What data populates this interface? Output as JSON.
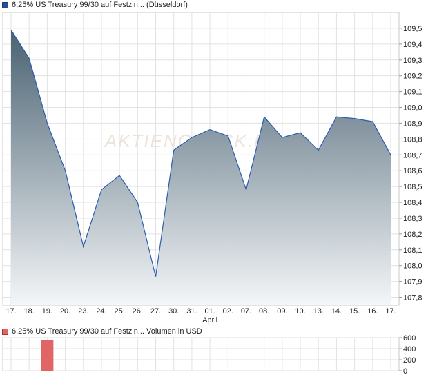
{
  "legend_main": {
    "label": "6,25% US Treasury 99/30 auf Festzin... (Düsseldorf)",
    "color": "#1f4e9a"
  },
  "legend_volume": {
    "label": "6,25% US Treasury 99/30 auf Festzin... Volumen in USD",
    "color": "#e06666"
  },
  "watermark": "AKTIENCHECK.DE",
  "chart_data": [
    {
      "type": "area",
      "x": [
        "17.",
        "18.",
        "19.",
        "20.",
        "23.",
        "24.",
        "25.",
        "26.",
        "27.",
        "30.",
        "31.",
        "01.",
        "02.",
        "07.",
        "08.",
        "09.",
        "10.",
        "13.",
        "14.",
        "15.",
        "16.",
        "17."
      ],
      "x_group_label": {
        "at": "01.",
        "text": "April"
      },
      "values": [
        109.49,
        109.31,
        108.9,
        108.6,
        108.12,
        108.48,
        108.57,
        108.4,
        107.93,
        108.73,
        108.81,
        108.86,
        108.82,
        108.48,
        108.94,
        108.81,
        108.84,
        108.73,
        108.94,
        108.93,
        108.91,
        108.7
      ],
      "ylim": [
        107.75,
        109.6
      ],
      "yticks": [
        "107,8",
        "107,9",
        "108,0",
        "108,1",
        "108,2",
        "108,3",
        "108,4",
        "108,5",
        "108,6",
        "108,7",
        "108,8",
        "108,9",
        "109,0",
        "109,1",
        "109,2",
        "109,3",
        "109,4",
        "109,5"
      ],
      "ytick_values": [
        107.8,
        107.9,
        108.0,
        108.1,
        108.2,
        108.3,
        108.4,
        108.5,
        108.6,
        108.7,
        108.8,
        108.9,
        109.0,
        109.1,
        109.2,
        109.3,
        109.4,
        109.5
      ],
      "line_color": "#2a5db0",
      "fill_top": "#4a6272",
      "fill_bottom": "#f4f6f8",
      "grid": true
    },
    {
      "type": "bar",
      "values": [
        0,
        0,
        560,
        0,
        0,
        0,
        0,
        0,
        0,
        0,
        0,
        0,
        0,
        0,
        0,
        0,
        0,
        0,
        0,
        0,
        0,
        0
      ],
      "ylim": [
        0,
        600
      ],
      "yticks": [
        "0",
        "200",
        "400",
        "600"
      ],
      "ytick_values": [
        0,
        200,
        400,
        600
      ],
      "bar_color": "#e06666",
      "grid": true
    }
  ]
}
